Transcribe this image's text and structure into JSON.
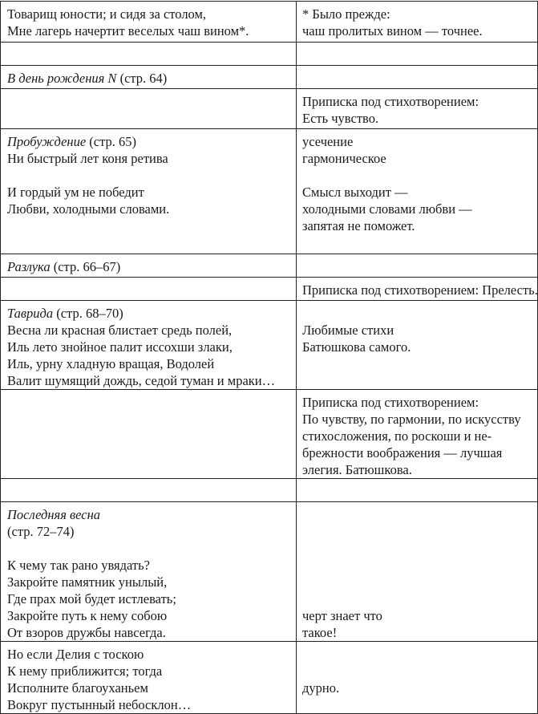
{
  "table": {
    "rows": [
      {
        "left": [
          {
            "t": "Товарищ юности; и сидя за столом,"
          },
          {
            "t": "Мне лагерь начертит веселых чаш вином*."
          }
        ],
        "right": [
          {
            "t": "* Было прежде:"
          },
          {
            "t": "чаш пролитых вином — точнее."
          }
        ]
      },
      {
        "left": [],
        "right": []
      },
      {
        "left": [
          {
            "i": "В день рождения N",
            "t": " (стр. 64)"
          }
        ],
        "right": []
      },
      {
        "left": [],
        "right": [
          {
            "t": "Приписка под стихотворением:"
          },
          {
            "t": "Есть чувство."
          }
        ]
      },
      {
        "left": [
          {
            "i": "Пробуждение",
            "t": " (стр. 65)"
          },
          {
            "t": "Ни быстрый лет коня ретива"
          },
          {
            "t": ""
          },
          {
            "t": "И гордый ум не победит"
          },
          {
            "t": "Любви, холодными словами."
          }
        ],
        "right": [
          {
            "t": "усечение"
          },
          {
            "t": "гармоническое"
          },
          {
            "t": ""
          },
          {
            "t": "Смысл выходит —"
          },
          {
            "t": "холодными словами любви —"
          },
          {
            "t": "запятая не поможет."
          }
        ]
      },
      {
        "left": [
          {
            "i": "Разлука",
            "t": " (стр. 66–67)"
          }
        ],
        "right": []
      },
      {
        "left": [],
        "right": [
          {
            "t": "Приписка под стихотворением: Прелесть."
          }
        ]
      },
      {
        "left": [
          {
            "i": "Таврида",
            "t": " (стр. 68–70)"
          },
          {
            "t": "Весна ли красная блистает средь полей,"
          },
          {
            "t": "Иль лето знойное палит иссохши злаки,"
          },
          {
            "t": "Иль, урну хладную вращая, Водолей"
          },
          {
            "t": "Валит шумящий дождь, седой туман и мраки…"
          }
        ],
        "right": [
          {
            "t": ""
          },
          {
            "t": "Любимые стихи"
          },
          {
            "t": "Батюшкова самого."
          }
        ]
      },
      {
        "left": [],
        "right": [
          {
            "t": "Приписка под стихотворением:"
          },
          {
            "t": "По чувству, по гармонии, по искусству"
          },
          {
            "t": "стихосложения, по роскоши и не-"
          },
          {
            "t": "брежности воображения — лучшая"
          },
          {
            "t": "элегия. Батюшкова."
          }
        ]
      },
      {
        "left": [],
        "right": []
      },
      {
        "left": [
          {
            "i": "Последняя весна"
          },
          {
            "t": "(стр. 72–74)"
          },
          {
            "t": ""
          },
          {
            "t": "К чему так рано увядать?"
          },
          {
            "t": "Закройте памятник унылый,"
          },
          {
            "t": "Где прах мой будет истлевать;"
          },
          {
            "t": "Закройте путь к нему собою"
          },
          {
            "t": "От взоров дружбы навсегда."
          }
        ],
        "right": [
          {
            "t": ""
          },
          {
            "t": ""
          },
          {
            "t": ""
          },
          {
            "t": ""
          },
          {
            "t": ""
          },
          {
            "t": ""
          },
          {
            "t": "черт знает что"
          },
          {
            "t": "такое!"
          }
        ]
      },
      {
        "left": [
          {
            "t": "Но если Делия с тоскою"
          },
          {
            "t": "К нему приближится; тогда"
          },
          {
            "t": "Исполните благоуханьем"
          },
          {
            "t": "Вокруг пустынный небосклон…"
          }
        ],
        "right": [
          {
            "t": ""
          },
          {
            "t": ""
          },
          {
            "t": "дурно."
          }
        ]
      }
    ]
  }
}
